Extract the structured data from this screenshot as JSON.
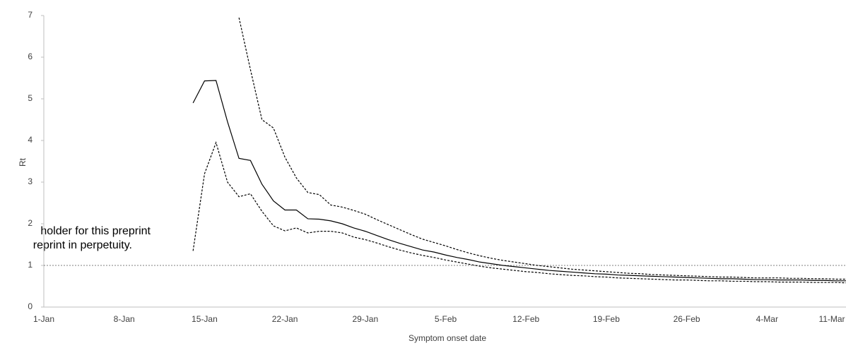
{
  "chart_data": {
    "type": "line",
    "y_label": "Rt",
    "x_label": "Symptom onset date",
    "categories": [
      "1-Jan",
      null,
      null,
      null,
      null,
      null,
      null,
      "8-Jan",
      null,
      null,
      null,
      null,
      null,
      null,
      "15-Jan",
      null,
      null,
      null,
      null,
      null,
      null,
      "22-Jan",
      null,
      null,
      null,
      null,
      null,
      null,
      "29-Jan",
      null,
      null,
      null,
      null,
      null,
      null,
      "5-Feb",
      null,
      null,
      null,
      null,
      null,
      null,
      "12-Feb",
      null,
      null,
      null,
      null,
      null,
      null,
      "19-Feb",
      null,
      null,
      null,
      null,
      null,
      null,
      "26-Feb",
      null,
      null,
      null,
      null,
      null,
      null,
      "4-Mar",
      null,
      null,
      null,
      null,
      null,
      null,
      "11-Mar"
    ],
    "series": [
      {
        "color": "#000000",
        "dash": "solid",
        "values": [
          null,
          null,
          null,
          null,
          null,
          null,
          null,
          null,
          null,
          null,
          null,
          null,
          null,
          4.9,
          5.43,
          5.44,
          4.45,
          3.57,
          3.52,
          2.95,
          2.55,
          2.33,
          2.33,
          2.12,
          2.11,
          2.07,
          2.0,
          1.9,
          1.82,
          1.72,
          1.62,
          1.53,
          1.45,
          1.37,
          1.32,
          1.25,
          1.19,
          1.14,
          1.08,
          1.04,
          1.0,
          0.97,
          0.94,
          0.91,
          0.88,
          0.86,
          0.84,
          0.82,
          0.8,
          0.79,
          0.77,
          0.76,
          0.75,
          0.74,
          0.73,
          0.72,
          0.71,
          0.7,
          0.69,
          0.68,
          0.68,
          0.67,
          0.66,
          0.66,
          0.65,
          0.65,
          0.65,
          0.64,
          0.64,
          0.63,
          0.63
        ]
      },
      {
        "color": "#000000",
        "dash": "dashed",
        "values": [
          null,
          null,
          null,
          null,
          null,
          null,
          null,
          null,
          null,
          null,
          null,
          null,
          null,
          null,
          null,
          null,
          null,
          6.95,
          5.7,
          4.5,
          4.3,
          3.6,
          3.1,
          2.75,
          2.7,
          2.45,
          2.4,
          2.32,
          2.23,
          2.1,
          1.98,
          1.86,
          1.74,
          1.63,
          1.55,
          1.47,
          1.38,
          1.3,
          1.23,
          1.17,
          1.12,
          1.08,
          1.04,
          1.0,
          0.97,
          0.94,
          0.91,
          0.89,
          0.87,
          0.85,
          0.83,
          0.81,
          0.8,
          0.78,
          0.77,
          0.76,
          0.75,
          0.74,
          0.73,
          0.72,
          0.72,
          0.71,
          0.7,
          0.7,
          0.7,
          0.69,
          0.69,
          0.68,
          0.68,
          0.67,
          0.67
        ]
      },
      {
        "color": "#000000",
        "dash": "dashed",
        "values": [
          null,
          null,
          null,
          null,
          null,
          null,
          null,
          null,
          null,
          null,
          null,
          null,
          null,
          1.35,
          3.2,
          3.95,
          3.0,
          2.65,
          2.72,
          2.3,
          1.95,
          1.83,
          1.9,
          1.78,
          1.82,
          1.82,
          1.78,
          1.68,
          1.62,
          1.54,
          1.45,
          1.37,
          1.3,
          1.24,
          1.19,
          1.13,
          1.08,
          1.03,
          0.98,
          0.94,
          0.91,
          0.88,
          0.85,
          0.83,
          0.8,
          0.78,
          0.76,
          0.75,
          0.73,
          0.72,
          0.7,
          0.69,
          0.68,
          0.67,
          0.66,
          0.65,
          0.65,
          0.64,
          0.63,
          0.63,
          0.62,
          0.62,
          0.61,
          0.61,
          0.6,
          0.6,
          0.6,
          0.59,
          0.59,
          0.59,
          0.58
        ]
      }
    ],
    "reference_line": 1,
    "ylim": [
      0,
      7
    ],
    "yticks": [
      0,
      1,
      2,
      3,
      4,
      5,
      6,
      7
    ],
    "grid": false,
    "annotations": [
      "holder for this preprint",
      "reprint in perpetuity."
    ]
  }
}
